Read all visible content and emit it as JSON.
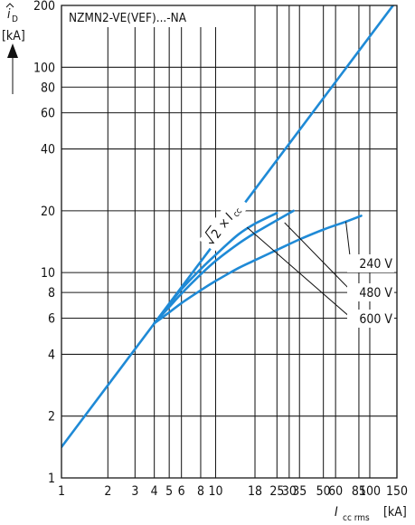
{
  "chart_data": {
    "type": "line",
    "title": "NZMN2-VE(VEF)...-NA",
    "xlabel": {
      "symbol": "I",
      "sub": "cc rms",
      "unit": "[kA]"
    },
    "ylabel": {
      "symbol": "i",
      "sub": "D",
      "unit": "[kA]"
    },
    "x_scale": "log",
    "y_scale": "log",
    "xlim": [
      1,
      150
    ],
    "ylim": [
      1,
      200
    ],
    "grid": true,
    "x_ticks": [
      1,
      2,
      3,
      4,
      5,
      6,
      8,
      10,
      18,
      25,
      30,
      35,
      50,
      60,
      85,
      100,
      150
    ],
    "x_tick_labels": [
      "1",
      "2",
      "3",
      "4",
      "5",
      "6",
      "8",
      "10",
      "18",
      "25",
      "30",
      "35",
      "50",
      "60",
      "85",
      "100",
      "150"
    ],
    "y_ticks": [
      1,
      2,
      4,
      6,
      8,
      10,
      20,
      40,
      60,
      80,
      100,
      200
    ],
    "y_tick_labels": [
      "1",
      "2",
      "4",
      "6",
      "8",
      "10",
      "20",
      "40",
      "60",
      "80",
      "100",
      "200"
    ],
    "series": [
      {
        "name": "√2 × Icc",
        "x": [
          1,
          150
        ],
        "y": [
          1.414,
          212
        ]
      },
      {
        "name": "600 V",
        "x": [
          4,
          5,
          6,
          8,
          10,
          14,
          18,
          25
        ],
        "y": [
          5.66,
          7.0,
          8.3,
          10.4,
          12.2,
          15.3,
          17.3,
          19.5
        ]
      },
      {
        "name": "480 V",
        "x": [
          4,
          5,
          6,
          8,
          10,
          14,
          18,
          25,
          32
        ],
        "y": [
          5.66,
          6.8,
          7.9,
          9.8,
          11.4,
          13.8,
          15.6,
          18.0,
          20.0
        ]
      },
      {
        "name": "240 V",
        "x": [
          4,
          5,
          6,
          8,
          10,
          14,
          18,
          25,
          35,
          50,
          70,
          88
        ],
        "y": [
          5.66,
          6.4,
          7.1,
          8.2,
          9.1,
          10.5,
          11.5,
          12.9,
          14.5,
          16.2,
          17.7,
          18.9
        ]
      }
    ],
    "annotations": {
      "diag_radicand": "2",
      "diag_times": "×",
      "diag_symbol": "I",
      "diag_sub": "cc",
      "label_240": "240 V",
      "label_480": "480 V",
      "label_600": "600 V"
    },
    "colors": {
      "curve": "#1f8ad6",
      "grid": "#1a1a1a"
    }
  }
}
